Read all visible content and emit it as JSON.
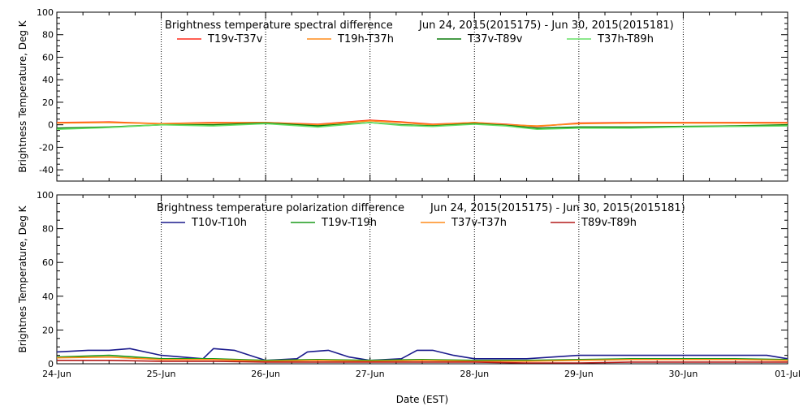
{
  "chart_data": [
    {
      "type": "line",
      "title": "Brightness temperature spectral difference",
      "date_range": "Jun 24, 2015(2015175) - Jun 30, 2015(2015181)",
      "ylabel": "Brightness Temperature, Deg K",
      "ylim": [
        -50,
        100
      ],
      "yticks": [
        -40,
        -20,
        0,
        20,
        40,
        60,
        80,
        100
      ],
      "xlim": [
        "2015-06-24",
        "2015-07-01"
      ],
      "grid": "vertical dotted at day boundaries",
      "legend_position": "top",
      "series": [
        {
          "name": "T19v-T37v",
          "color": "#ff2a1a",
          "x": [
            0,
            0.5,
            1,
            1.5,
            2,
            2.5,
            3,
            3.3,
            3.6,
            4,
            4.3,
            4.6,
            5,
            5.5,
            6,
            6.5,
            7
          ],
          "y": [
            2,
            2.5,
            1,
            2,
            2,
            0.5,
            4,
            2.5,
            0.5,
            2,
            0.5,
            -1.5,
            1.5,
            2,
            2,
            2,
            2
          ]
        },
        {
          "name": "T19h-T37h",
          "color": "#ff8c1a",
          "x": [
            0,
            0.5,
            1,
            1.5,
            2,
            2.5,
            3,
            3.3,
            3.6,
            4,
            4.3,
            4.6,
            5,
            5.5,
            6,
            6.5,
            7
          ],
          "y": [
            1.5,
            2,
            1,
            1.5,
            2,
            0,
            3.5,
            2,
            0,
            2,
            0,
            -1,
            1,
            1.5,
            1.5,
            1.5,
            1.5
          ]
        },
        {
          "name": "T37v-T89v",
          "color": "#0a7a0a",
          "x": [
            0,
            0.5,
            1,
            1.5,
            2,
            2.5,
            3,
            3.3,
            3.6,
            4,
            4.3,
            4.6,
            5,
            5.5,
            6,
            6.5,
            7
          ],
          "y": [
            -3,
            -2,
            0,
            0,
            1.5,
            -1,
            2,
            0,
            -1,
            1,
            -0.5,
            -3,
            -2,
            -2,
            -1.5,
            -1,
            0
          ]
        },
        {
          "name": "T37h-T89h",
          "color": "#66e066",
          "x": [
            0,
            0.5,
            1,
            1.5,
            2,
            2.5,
            3,
            3.3,
            3.6,
            4,
            4.3,
            4.6,
            5,
            5.5,
            6,
            6.5,
            7
          ],
          "y": [
            -4,
            -2.5,
            0,
            -1,
            1,
            -2,
            2,
            -0.5,
            -1.5,
            0.5,
            -1,
            -4,
            -3,
            -3,
            -2,
            -1.5,
            -1
          ]
        }
      ]
    },
    {
      "type": "line",
      "title": "Brightness temperature polarization difference",
      "date_range": "Jun 24, 2015(2015175) - Jun 30, 2015(2015181)",
      "xlabel": "Date (EST)",
      "ylabel": "Brightnes Temperature, Deg K",
      "ylim": [
        0,
        100
      ],
      "yticks": [
        0,
        20,
        40,
        60,
        80,
        100
      ],
      "xlim": [
        "2015-06-24",
        "2015-07-01"
      ],
      "xtick_labels": [
        "24-Jun",
        "25-Jun",
        "26-Jun",
        "27-Jun",
        "28-Jun",
        "29-Jun",
        "30-Jun",
        "01-Jul"
      ],
      "grid": "vertical dotted at day boundaries",
      "legend_position": "top",
      "series": [
        {
          "name": "T10v-T10h",
          "color": "#1a1a8c",
          "x": [
            0,
            0.3,
            0.5,
            0.7,
            1,
            1.2,
            1.4,
            1.5,
            1.7,
            1.9,
            2,
            2.3,
            2.4,
            2.6,
            2.8,
            3,
            3.3,
            3.45,
            3.6,
            3.8,
            4,
            4.5,
            5,
            5.5,
            6,
            6.5,
            6.8,
            7
          ],
          "y": [
            7,
            8,
            8,
            9,
            5,
            4,
            3,
            9,
            8,
            4,
            2,
            3,
            7,
            8,
            4,
            2,
            3,
            8,
            8,
            5,
            3,
            3,
            5,
            5,
            5,
            5,
            5,
            3
          ]
        },
        {
          "name": "T19v-T19h",
          "color": "#1a9a1a",
          "x": [
            0,
            0.5,
            1,
            1.5,
            2,
            2.5,
            3,
            3.5,
            4,
            4.5,
            5,
            5.5,
            6,
            6.5,
            7
          ],
          "y": [
            4,
            5,
            3,
            3,
            2,
            2.5,
            2,
            2.5,
            2,
            2,
            2.5,
            3,
            3,
            3,
            2.5
          ]
        },
        {
          "name": "T37v-T37h",
          "color": "#ff8c1a",
          "x": [
            0,
            0.5,
            1,
            1.5,
            2,
            2.5,
            3,
            3.5,
            4,
            4.5,
            5,
            5.5,
            6,
            6.5,
            7
          ],
          "y": [
            3.5,
            4,
            2.5,
            2.5,
            1.5,
            2,
            1.5,
            2,
            1.5,
            1.5,
            2,
            2.5,
            2.5,
            2.5,
            2
          ]
        },
        {
          "name": "T89v-T89h",
          "color": "#b31a1a",
          "x": [
            0,
            0.5,
            1,
            1.5,
            2,
            2.5,
            3,
            3.5,
            4,
            4.5,
            5,
            5.5,
            6,
            6.5,
            7
          ],
          "y": [
            2,
            2,
            1.5,
            1.5,
            1,
            1,
            1,
            1,
            1,
            0.5,
            0.5,
            1,
            1,
            1,
            1
          ]
        }
      ]
    }
  ]
}
